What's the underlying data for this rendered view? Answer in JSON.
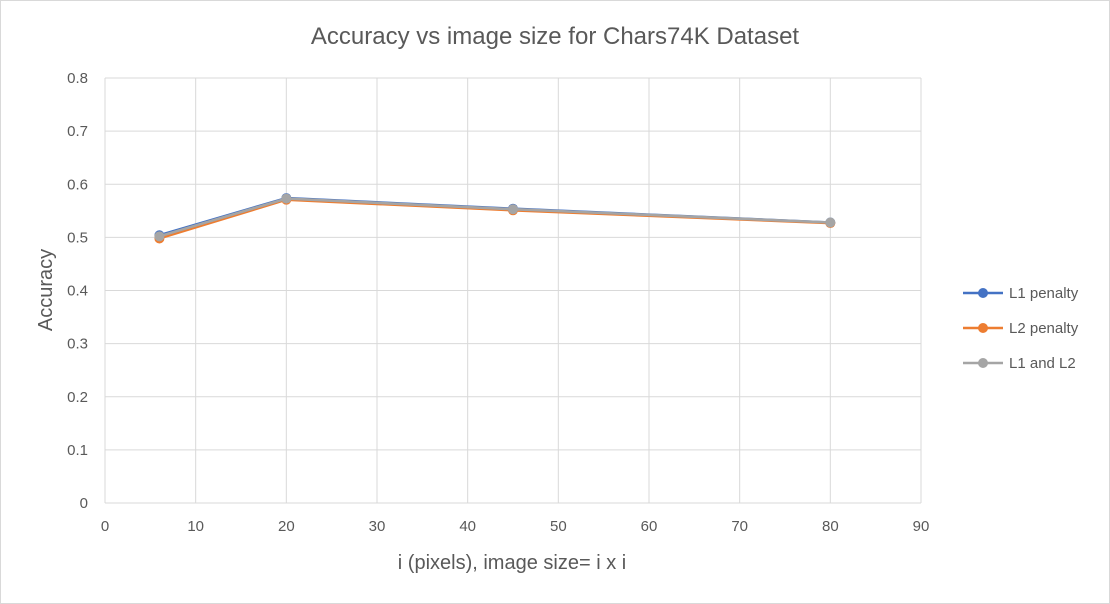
{
  "chart_data": {
    "type": "line",
    "title": "Accuracy vs image size for Chars74K Dataset",
    "xlabel": "i (pixels), image size= i x i",
    "ylabel": "Accuracy",
    "xlim": [
      0,
      90
    ],
    "ylim": [
      0,
      0.8
    ],
    "x_ticks": [
      "0",
      "10",
      "20",
      "30",
      "40",
      "50",
      "60",
      "70",
      "80",
      "90"
    ],
    "y_ticks": [
      "0",
      "0.1",
      "0.2",
      "0.3",
      "0.4",
      "0.5",
      "0.6",
      "0.7",
      "0.8"
    ],
    "x": [
      6,
      20,
      45,
      80
    ],
    "series": [
      {
        "name": "L1 penalty",
        "color": "#4472c4",
        "values": [
          0.504,
          0.574,
          0.554,
          0.528
        ]
      },
      {
        "name": "L2 penalty",
        "color": "#ed7d31",
        "values": [
          0.498,
          0.571,
          0.551,
          0.527
        ]
      },
      {
        "name": "L1 and L2",
        "color": "#a5a5a5",
        "values": [
          0.502,
          0.573,
          0.553,
          0.528
        ]
      }
    ],
    "grid": true,
    "legend_position": "right"
  }
}
